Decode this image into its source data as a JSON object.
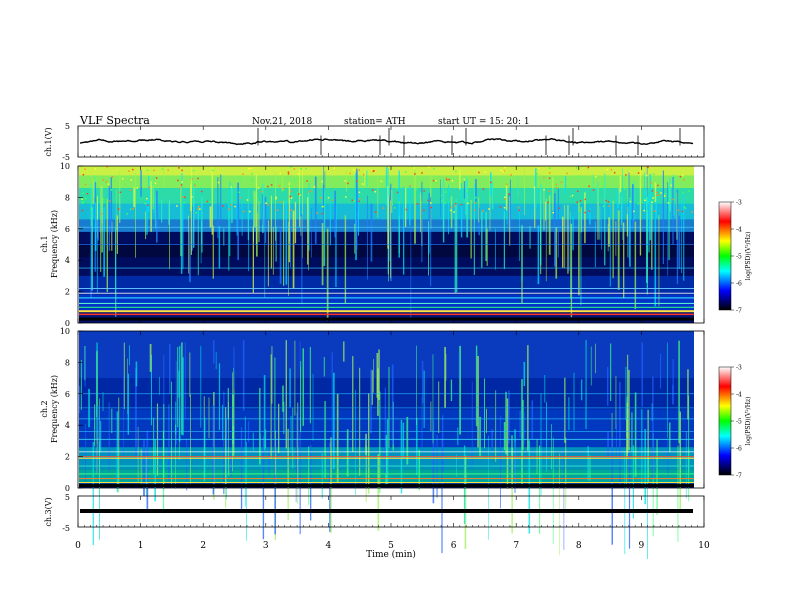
{
  "header": {
    "title": "VLF  Spectra",
    "date": "Nov.21, 2018",
    "station": "station= ATH",
    "start": "start  UT  =    15: 20: 1"
  },
  "chart_data": [
    {
      "type": "line",
      "name": "ch1-waveform",
      "ylabel": "ch.1(V)",
      "ylim": [
        -5,
        5
      ],
      "yticks": [
        "5",
        "-5"
      ],
      "xlim": [
        0,
        10
      ],
      "color": "#000000"
    },
    {
      "type": "heatmap",
      "name": "ch1-spectrogram",
      "ylabel_lines": [
        "ch.1",
        "Frequency  (kHz)"
      ],
      "ylim": [
        0,
        10
      ],
      "yticks": [
        "0",
        "2",
        "4",
        "6",
        "8",
        "10"
      ],
      "xlim": [
        0,
        10
      ],
      "colorbar": {
        "label": "log(PSD)(V²/Hz)",
        "ticks": [
          "-3",
          "-4",
          "-5",
          "-6",
          "-7"
        ]
      }
    },
    {
      "type": "heatmap",
      "name": "ch2-spectrogram",
      "ylabel_lines": [
        "ch.2",
        "Frequency  (kHz)"
      ],
      "ylim": [
        0,
        10
      ],
      "yticks": [
        "0",
        "2",
        "4",
        "6",
        "8",
        "10"
      ],
      "xlim": [
        0,
        10
      ],
      "colorbar": {
        "label": "log(PSD)(V²/Hz)",
        "ticks": [
          "-3",
          "-4",
          "-5",
          "-6",
          "-7"
        ]
      }
    },
    {
      "type": "line",
      "name": "ch3-waveform",
      "ylabel": "ch.3(V)",
      "ylim": [
        -5,
        5
      ],
      "yticks": [
        "5",
        "-5"
      ],
      "xlim": [
        0,
        10
      ],
      "xticks": [
        "0",
        "1",
        "2",
        "3",
        "4",
        "5",
        "6",
        "7",
        "8",
        "9",
        "10"
      ],
      "xlabel": "Time  (min)",
      "color": "#000000"
    }
  ],
  "colors": {
    "scale": [
      "#ffffff",
      "#ff0000",
      "#ffff00",
      "#00ff00",
      "#00ffff",
      "#0000ff",
      "#000000"
    ]
  }
}
